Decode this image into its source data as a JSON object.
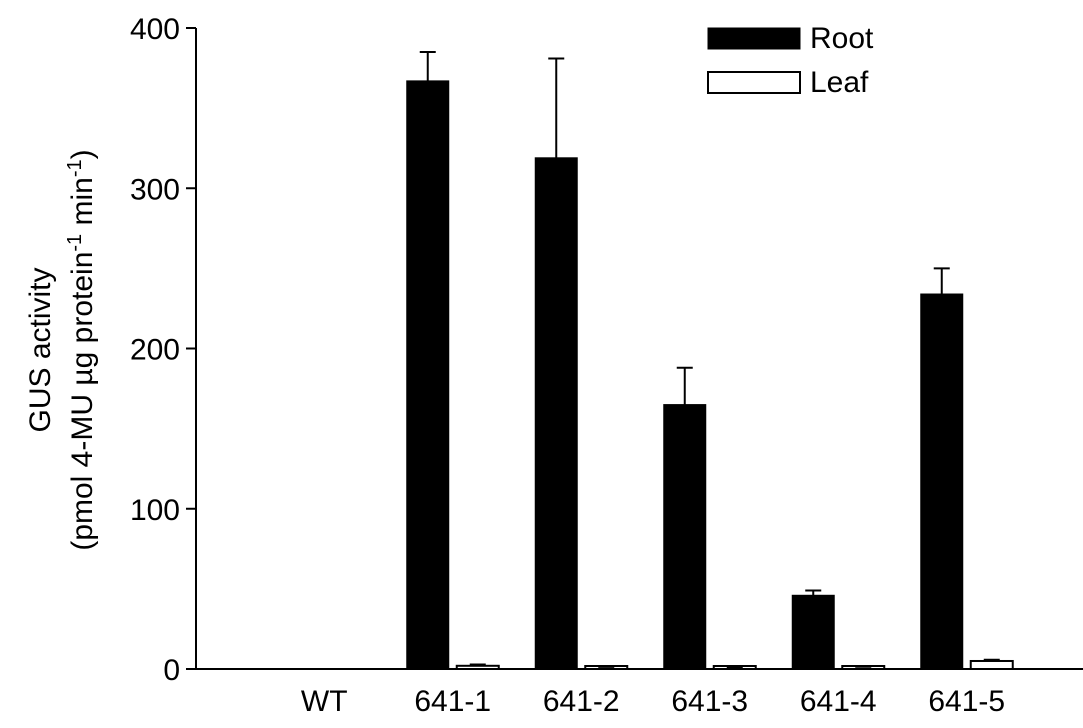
{
  "chart_data": {
    "type": "bar",
    "categories": [
      "WT",
      "641-1",
      "641-2",
      "641-3",
      "641-4",
      "641-5"
    ],
    "series": [
      {
        "name": "Root",
        "color": "#000000",
        "values": [
          0,
          367,
          319,
          165,
          46,
          234
        ],
        "errors": [
          0,
          18,
          62,
          23,
          3,
          16
        ]
      },
      {
        "name": "Leaf",
        "color": "#ffffff",
        "values": [
          0,
          2,
          1,
          0.5,
          1,
          5
        ],
        "errors": [
          0,
          0.8,
          0.3,
          0.2,
          0.4,
          0.8
        ]
      }
    ],
    "ylabel_line1": "GUS activity",
    "ylabel_line2": "(pmol 4-MU µg protein",
    "ylabel_sup1": "-1",
    "ylabel_mid": " min",
    "ylabel_sup2": "-1",
    "ylabel_end": ")",
    "ylim": [
      0,
      400
    ],
    "yticks": [
      0,
      100,
      200,
      300,
      400
    ],
    "grid": false,
    "legend_position": "top-right"
  }
}
